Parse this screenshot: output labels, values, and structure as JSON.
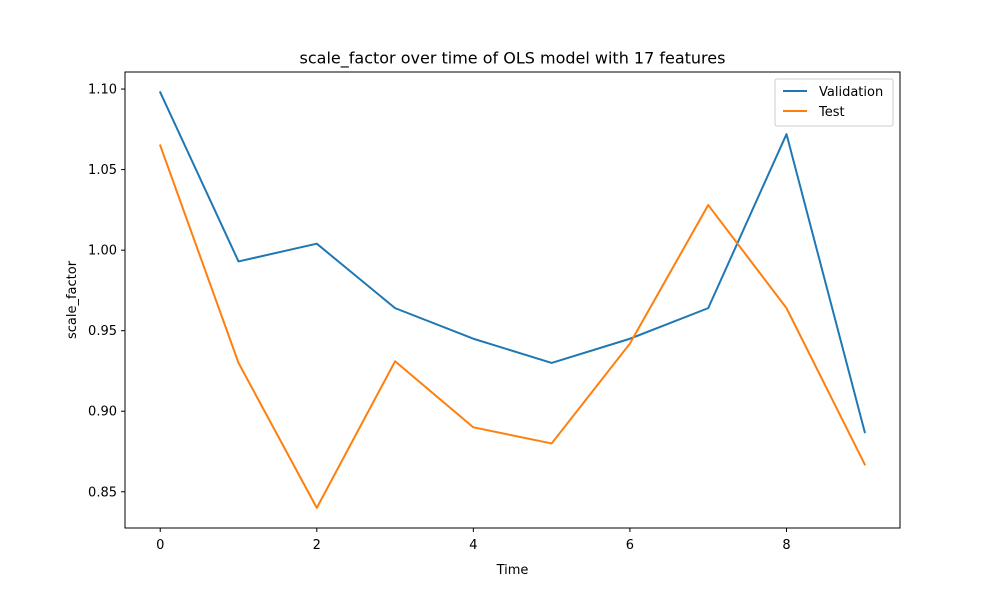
{
  "chart_data": {
    "type": "line",
    "title": "scale_factor over time of OLS model with 17 features",
    "xlabel": "Time",
    "ylabel": "scale_factor",
    "xlim": [
      -0.45,
      9.45
    ],
    "ylim": [
      0.8275,
      1.1106
    ],
    "x_ticks": [
      0,
      2,
      4,
      6,
      8
    ],
    "x_tick_labels": [
      "0",
      "2",
      "4",
      "6",
      "8"
    ],
    "y_ticks": [
      0.85,
      0.9,
      0.95,
      1.0,
      1.05,
      1.1
    ],
    "y_tick_labels": [
      "0.85",
      "0.90",
      "0.95",
      "1.00",
      "1.05",
      "1.10"
    ],
    "grid": false,
    "legend_position": "top-right",
    "x": [
      0,
      1,
      2,
      3,
      4,
      5,
      6,
      7,
      8,
      9
    ],
    "series": [
      {
        "name": "Validation",
        "color": "#1f77b4",
        "values": [
          1.098,
          0.993,
          1.004,
          0.964,
          0.945,
          0.93,
          0.945,
          0.964,
          1.072,
          0.887
        ]
      },
      {
        "name": "Test",
        "color": "#ff7f0e",
        "values": [
          1.065,
          0.93,
          0.84,
          0.931,
          0.89,
          0.88,
          0.942,
          1.028,
          0.964,
          0.867
        ]
      }
    ]
  }
}
